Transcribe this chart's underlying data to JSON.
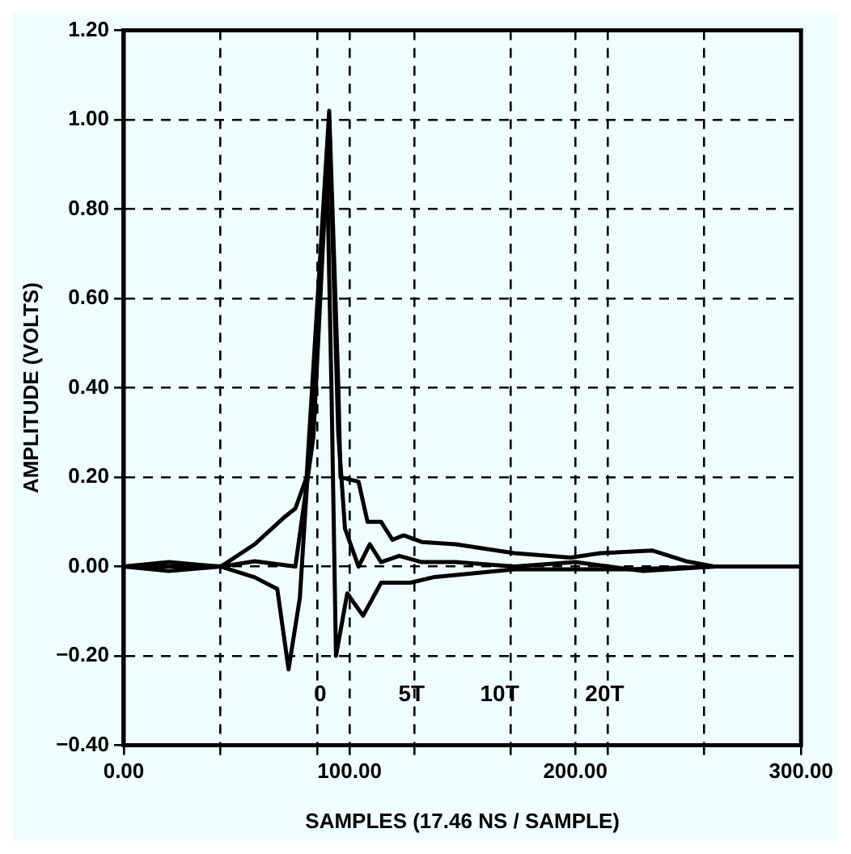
{
  "chart_data": {
    "type": "line",
    "xlabel": "SAMPLES (17.46 NS / SAMPLE)",
    "ylabel": "AMPLITUDE (VOLTS)",
    "xlim": [
      0,
      300
    ],
    "ylim": [
      -0.4,
      1.2
    ],
    "xticks": [
      {
        "value": 0,
        "label": "0.00"
      },
      {
        "value": 42.86,
        "label": null
      },
      {
        "value": 85.71,
        "label": null
      },
      {
        "value": 100,
        "label": "100.00"
      },
      {
        "value": 128.57,
        "label": null
      },
      {
        "value": 171.43,
        "label": null
      },
      {
        "value": 200,
        "label": "200.00"
      },
      {
        "value": 214.29,
        "label": null
      },
      {
        "value": 257.14,
        "label": null
      },
      {
        "value": 300,
        "label": "300.00"
      }
    ],
    "yticks": [
      {
        "value": -0.4,
        "label": "−0.40"
      },
      {
        "value": -0.2,
        "label": "−0.20"
      },
      {
        "value": 0,
        "label": "0.00"
      },
      {
        "value": 0.2,
        "label": "0.20"
      },
      {
        "value": 0.4,
        "label": "0.40"
      },
      {
        "value": 0.6,
        "label": "0.60"
      },
      {
        "value": 0.8,
        "label": "0.80"
      },
      {
        "value": 1,
        "label": "1.00"
      },
      {
        "value": 1.2,
        "label": "1.20"
      }
    ],
    "grid": true,
    "legend": false,
    "marker": "none",
    "line_style": "solid",
    "series": [
      {
        "color": "#000000",
        "x": [
          0,
          20,
          43,
          58,
          71,
          76,
          81,
          91,
          95,
          96,
          104,
          108,
          114,
          119,
          124,
          132,
          147,
          173,
          198,
          211,
          234,
          249,
          262,
          300
        ],
        "values": [
          0,
          0.01,
          0,
          0.05,
          0.11,
          0.13,
          0.2,
          1.02,
          0.41,
          0.2,
          0.19,
          0.1,
          0.1,
          0.06,
          0.07,
          0.055,
          0.05,
          0.03,
          0.02,
          0.03,
          0.036,
          0.012,
          0,
          0
        ]
      },
      {
        "color": "#000000",
        "x": [
          0,
          20,
          43,
          58,
          76,
          84,
          91,
          95,
          98,
          104,
          109,
          114,
          122,
          132,
          147,
          173,
          200,
          230,
          262,
          300
        ],
        "values": [
          0,
          -0.01,
          0,
          0.012,
          0,
          0.29,
          1.0,
          0.3,
          0.085,
          0,
          0.05,
          0.01,
          0.024,
          0.01,
          0.01,
          0,
          0.01,
          -0.01,
          0,
          0
        ]
      },
      {
        "color": "#000000",
        "x": [
          0,
          43,
          58,
          68,
          73,
          78,
          84,
          90,
          92,
          94,
          99,
          106,
          114,
          127,
          137,
          173,
          224,
          262,
          300
        ],
        "values": [
          0,
          0,
          -0.024,
          -0.05,
          -0.23,
          -0.07,
          0.41,
          0.9,
          0.4,
          -0.2,
          -0.06,
          -0.11,
          -0.036,
          -0.036,
          -0.024,
          -0.006,
          -0.006,
          0,
          0
        ]
      }
    ],
    "annotations": [
      "0",
      "5T",
      "10T",
      "20T"
    ]
  }
}
